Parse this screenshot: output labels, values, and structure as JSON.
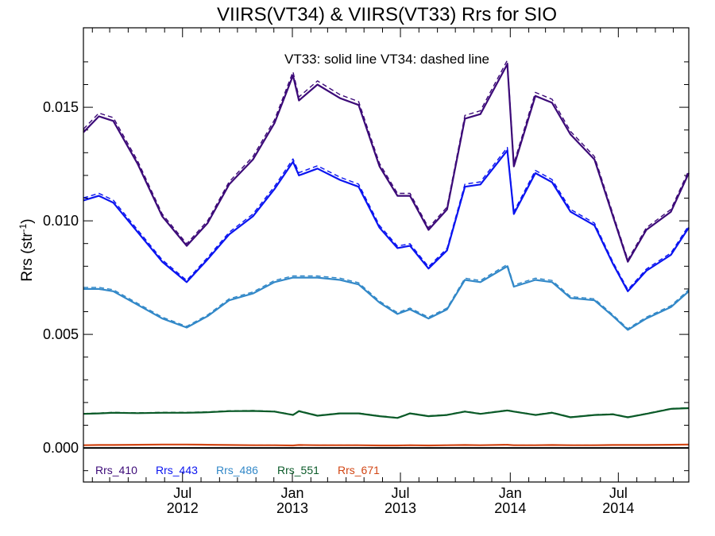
{
  "chart_data": {
    "type": "line",
    "title": "VIIRS(VT34) & VIIRS(VT33)  Rrs for SIO",
    "annotation": "VT33: solid line   VT34: dashed line",
    "ylabel": "Rrs (str",
    "ylabel_sup": "-1",
    "ylabel_close": ")",
    "ylim": [
      -0.0015,
      0.0185
    ],
    "xlim": [
      "2012-01-17",
      "2014-10-27"
    ],
    "yticks": [
      "0.000",
      "0.005",
      "0.010",
      "0.015"
    ],
    "xticks": [
      {
        "date": "2012-07-01",
        "month": "Jul",
        "year": "2012"
      },
      {
        "date": "2013-01-01",
        "month": "Jan",
        "year": "2013"
      },
      {
        "date": "2013-07-01",
        "month": "Jul",
        "year": "2013"
      },
      {
        "date": "2014-01-01",
        "month": "Jan",
        "year": "2014"
      },
      {
        "date": "2014-07-01",
        "month": "Jul",
        "year": "2014"
      }
    ],
    "x": [
      "2012-01-17",
      "2012-02-12",
      "2012-03-07",
      "2012-04-17",
      "2012-05-28",
      "2012-07-08",
      "2012-08-12",
      "2012-09-17",
      "2012-10-27",
      "2012-12-02",
      "2013-01-02",
      "2013-01-12",
      "2013-02-12",
      "2013-03-22",
      "2013-04-22",
      "2013-05-27",
      "2013-06-26",
      "2013-07-17",
      "2013-08-17",
      "2013-09-17",
      "2013-10-17",
      "2013-11-12",
      "2013-12-27",
      "2014-01-07",
      "2014-02-12",
      "2014-03-12",
      "2014-04-12",
      "2014-05-22",
      "2014-06-22",
      "2014-07-17",
      "2014-08-17",
      "2014-09-27",
      "2014-10-27"
    ],
    "series": [
      {
        "name": "Rrs_410",
        "color": "#3c0a78",
        "values": [
          0.0139,
          0.0146,
          0.0144,
          0.0125,
          0.0102,
          0.0089,
          0.0099,
          0.0116,
          0.0127,
          0.0143,
          0.0164,
          0.0153,
          0.016,
          0.0154,
          0.0151,
          0.0124,
          0.0111,
          0.0111,
          0.0096,
          0.0105,
          0.0145,
          0.0147,
          0.0169,
          0.0124,
          0.0155,
          0.0152,
          0.0138,
          0.0127,
          0.0102,
          0.0082,
          0.0096,
          0.0104,
          0.0121
        ]
      },
      {
        "name": "Rrs_443",
        "color": "#0a14f0",
        "values": [
          0.0109,
          0.0111,
          0.0108,
          0.0095,
          0.0082,
          0.0073,
          0.0083,
          0.0094,
          0.0102,
          0.0114,
          0.0126,
          0.012,
          0.0123,
          0.0118,
          0.0115,
          0.0097,
          0.0088,
          0.0089,
          0.0079,
          0.0087,
          0.0115,
          0.0116,
          0.0131,
          0.0103,
          0.0121,
          0.0117,
          0.0104,
          0.0098,
          0.0081,
          0.0069,
          0.0078,
          0.0085,
          0.0097
        ]
      },
      {
        "name": "Rrs_486",
        "color": "#3288c8",
        "values": [
          0.007,
          0.007,
          0.0069,
          0.0063,
          0.0057,
          0.0053,
          0.0058,
          0.0065,
          0.0068,
          0.0073,
          0.0075,
          0.0075,
          0.0075,
          0.0074,
          0.0072,
          0.0064,
          0.0059,
          0.0061,
          0.0057,
          0.0061,
          0.0074,
          0.0073,
          0.008,
          0.0071,
          0.0074,
          0.0073,
          0.0066,
          0.0065,
          0.0058,
          0.0052,
          0.0057,
          0.0062,
          0.0069
        ]
      },
      {
        "name": "Rrs_551",
        "color": "#0a5a28",
        "values": [
          0.0015,
          0.00152,
          0.00155,
          0.00153,
          0.00155,
          0.00155,
          0.00157,
          0.00162,
          0.00163,
          0.0016,
          0.00145,
          0.00162,
          0.00142,
          0.00152,
          0.00152,
          0.0014,
          0.00132,
          0.00152,
          0.0014,
          0.00145,
          0.0016,
          0.0015,
          0.00165,
          0.0016,
          0.00145,
          0.00155,
          0.00135,
          0.00145,
          0.00148,
          0.00135,
          0.0015,
          0.00172,
          0.00175
        ]
      },
      {
        "name": "Rrs_671",
        "color": "#d24614",
        "values": [
          0.00012,
          0.00013,
          0.00013,
          0.00014,
          0.00015,
          0.00015,
          0.00014,
          0.00013,
          0.00012,
          0.00012,
          0.00011,
          0.00013,
          0.00012,
          0.00012,
          0.00012,
          0.00011,
          0.00011,
          0.00012,
          0.00011,
          0.00012,
          0.00013,
          0.00012,
          0.00014,
          0.00012,
          0.00012,
          0.00013,
          0.00012,
          0.00012,
          0.00013,
          0.00013,
          0.00013,
          0.00014,
          0.00015
        ]
      }
    ],
    "zero_line": true,
    "line_styles": {
      "VT33": "solid",
      "VT34": "dashed"
    },
    "legend_placement": "bottom-left"
  }
}
